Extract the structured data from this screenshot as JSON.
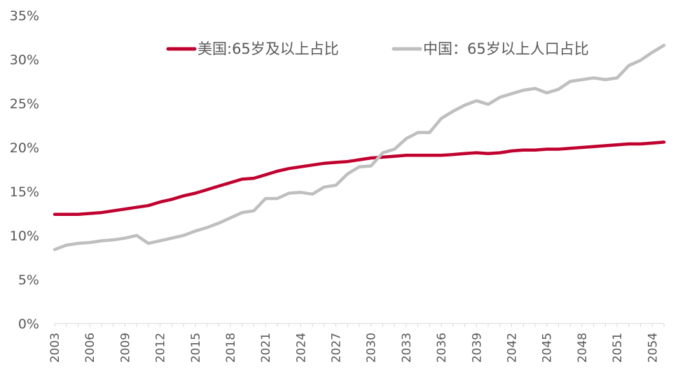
{
  "chart_data": {
    "type": "line",
    "title": "",
    "xlabel": "",
    "ylabel": "",
    "ylim": [
      0,
      35
    ],
    "yticks": [
      "0%",
      "5%",
      "10%",
      "15%",
      "20%",
      "25%",
      "30%",
      "35%"
    ],
    "xlim": [
      2003,
      2055
    ],
    "xticks": [
      "2003",
      "2006",
      "2009",
      "2012",
      "2015",
      "2018",
      "2021",
      "2024",
      "2027",
      "2030",
      "2033",
      "2036",
      "2039",
      "2042",
      "2045",
      "2048",
      "2051",
      "2054"
    ],
    "grid": false,
    "legend_position": "top",
    "series": [
      {
        "name": "美国:65岁及以上占比",
        "color": "#C0002F",
        "x": [
          2003,
          2004,
          2005,
          2006,
          2007,
          2008,
          2009,
          2010,
          2011,
          2012,
          2013,
          2014,
          2015,
          2016,
          2017,
          2018,
          2019,
          2020,
          2021,
          2022,
          2023,
          2024,
          2025,
          2026,
          2027,
          2028,
          2029,
          2030,
          2031,
          2032,
          2033,
          2034,
          2035,
          2036,
          2037,
          2038,
          2039,
          2040,
          2041,
          2042,
          2043,
          2044,
          2045,
          2046,
          2047,
          2048,
          2049,
          2050,
          2051,
          2052,
          2053,
          2054,
          2055
        ],
        "values": [
          12.4,
          12.4,
          12.4,
          12.5,
          12.6,
          12.8,
          13.0,
          13.2,
          13.4,
          13.8,
          14.1,
          14.5,
          14.8,
          15.2,
          15.6,
          16.0,
          16.4,
          16.5,
          16.9,
          17.3,
          17.6,
          17.8,
          18.0,
          18.2,
          18.3,
          18.4,
          18.6,
          18.8,
          18.9,
          19.0,
          19.1,
          19.1,
          19.1,
          19.1,
          19.2,
          19.3,
          19.4,
          19.3,
          19.4,
          19.6,
          19.7,
          19.7,
          19.8,
          19.8,
          19.9,
          20.0,
          20.1,
          20.2,
          20.3,
          20.4,
          20.4,
          20.5,
          20.6
        ]
      },
      {
        "name": "中国：65岁以上人口占比",
        "color": "#BFBFBF",
        "x": [
          2003,
          2004,
          2005,
          2006,
          2007,
          2008,
          2009,
          2010,
          2011,
          2012,
          2013,
          2014,
          2015,
          2016,
          2017,
          2018,
          2019,
          2020,
          2021,
          2022,
          2023,
          2024,
          2025,
          2026,
          2027,
          2028,
          2029,
          2030,
          2031,
          2032,
          2033,
          2034,
          2035,
          2036,
          2037,
          2038,
          2039,
          2040,
          2041,
          2042,
          2043,
          2044,
          2045,
          2046,
          2047,
          2048,
          2049,
          2050,
          2051,
          2052,
          2053,
          2054,
          2055
        ],
        "values": [
          8.4,
          8.9,
          9.1,
          9.2,
          9.4,
          9.5,
          9.7,
          10.0,
          9.1,
          9.4,
          9.7,
          10.0,
          10.5,
          10.9,
          11.4,
          12.0,
          12.6,
          12.8,
          14.2,
          14.2,
          14.8,
          14.9,
          14.7,
          15.5,
          15.7,
          17.0,
          17.8,
          17.9,
          19.4,
          19.8,
          21.0,
          21.7,
          21.7,
          23.3,
          24.1,
          24.8,
          25.3,
          24.9,
          25.7,
          26.1,
          26.5,
          26.7,
          26.2,
          26.6,
          27.5,
          27.7,
          27.9,
          27.7,
          27.9,
          29.3,
          29.9,
          30.8,
          31.6
        ]
      }
    ]
  }
}
